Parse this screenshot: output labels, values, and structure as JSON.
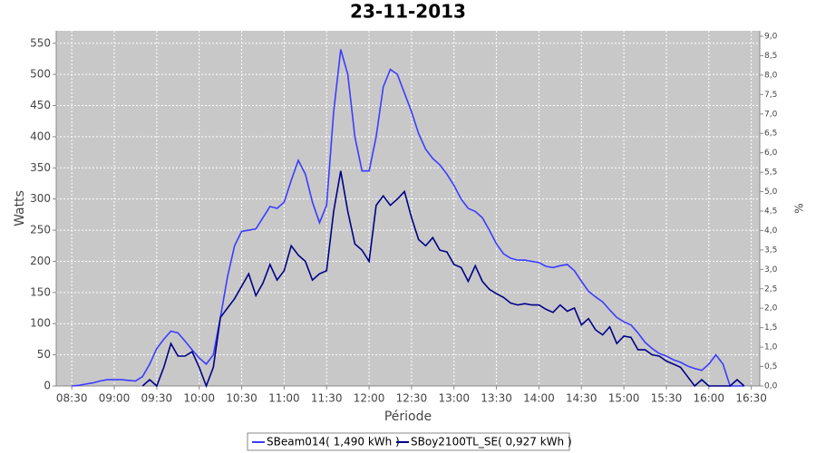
{
  "chart_data": {
    "type": "line",
    "title": "23-11-2013",
    "x_label": "Période",
    "y_label": "Watts",
    "y2_label": "%",
    "x": [
      "08:30",
      "08:35",
      "08:40",
      "08:45",
      "08:50",
      "08:55",
      "09:00",
      "09:05",
      "09:10",
      "09:15",
      "09:20",
      "09:25",
      "09:30",
      "09:35",
      "09:40",
      "09:45",
      "09:50",
      "09:55",
      "10:00",
      "10:05",
      "10:10",
      "10:15",
      "10:20",
      "10:25",
      "10:30",
      "10:35",
      "10:40",
      "10:45",
      "10:50",
      "10:55",
      "11:00",
      "11:05",
      "11:10",
      "11:15",
      "11:20",
      "11:25",
      "11:30",
      "11:35",
      "11:40",
      "11:45",
      "11:50",
      "11:55",
      "12:00",
      "12:05",
      "12:10",
      "12:15",
      "12:20",
      "12:25",
      "12:30",
      "12:35",
      "12:40",
      "12:45",
      "12:50",
      "12:55",
      "13:00",
      "13:05",
      "13:10",
      "13:15",
      "13:20",
      "13:25",
      "13:30",
      "13:35",
      "13:40",
      "13:45",
      "13:50",
      "13:55",
      "14:00",
      "14:05",
      "14:10",
      "14:15",
      "14:20",
      "14:25",
      "14:30",
      "14:35",
      "14:40",
      "14:45",
      "14:50",
      "14:55",
      "15:00",
      "15:05",
      "15:10",
      "15:15",
      "15:20",
      "15:25",
      "15:30",
      "15:35",
      "15:40",
      "15:45",
      "15:50",
      "15:55",
      "16:00",
      "16:05",
      "16:10",
      "16:15",
      "16:20",
      "16:25"
    ],
    "series": [
      {
        "name": "SBeam014( 1,490 kWh )",
        "color": "#3c3cff",
        "values": [
          0,
          1,
          3,
          5,
          8,
          10,
          10,
          10,
          9,
          8,
          15,
          35,
          60,
          75,
          88,
          85,
          72,
          58,
          45,
          35,
          50,
          110,
          175,
          225,
          248,
          250,
          252,
          270,
          288,
          285,
          295,
          330,
          362,
          340,
          295,
          262,
          290,
          440,
          540,
          500,
          400,
          345,
          345,
          400,
          480,
          508,
          500,
          470,
          440,
          405,
          380,
          365,
          355,
          340,
          322,
          300,
          285,
          280,
          270,
          250,
          228,
          212,
          205,
          202,
          202,
          200,
          198,
          192,
          190,
          193,
          195,
          185,
          168,
          152,
          143,
          135,
          122,
          110,
          103,
          98,
          85,
          70,
          60,
          52,
          48,
          42,
          38,
          32,
          28,
          25,
          35,
          50,
          35,
          0,
          0,
          0
        ]
      },
      {
        "name": "SBoy2100TL_SE( 0,927 kWh )",
        "color": "#000088",
        "values": [
          null,
          null,
          null,
          null,
          null,
          null,
          null,
          null,
          null,
          null,
          0,
          10,
          0,
          30,
          68,
          48,
          48,
          55,
          30,
          0,
          30,
          110,
          125,
          140,
          160,
          180,
          145,
          165,
          195,
          170,
          185,
          225,
          210,
          200,
          170,
          180,
          185,
          280,
          345,
          280,
          228,
          218,
          200,
          290,
          305,
          290,
          300,
          312,
          270,
          235,
          225,
          238,
          218,
          215,
          195,
          190,
          168,
          193,
          168,
          155,
          148,
          142,
          133,
          130,
          132,
          130,
          130,
          123,
          118,
          130,
          120,
          125,
          98,
          108,
          90,
          82,
          95,
          68,
          80,
          78,
          58,
          58,
          50,
          48,
          40,
          35,
          30,
          15,
          0,
          10,
          0,
          0,
          0,
          0,
          10,
          0
        ]
      }
    ],
    "xlim": [
      "08:19",
      "16:36"
    ],
    "xticks": [
      "08:30",
      "09:00",
      "09:30",
      "10:00",
      "10:30",
      "11:00",
      "11:30",
      "12:00",
      "12:30",
      "13:00",
      "13:30",
      "14:00",
      "14:30",
      "15:00",
      "15:30",
      "16:00",
      "16:30"
    ],
    "ylim": [
      0,
      570
    ],
    "yticks": [
      0,
      50,
      100,
      150,
      200,
      250,
      300,
      350,
      400,
      450,
      500,
      550
    ],
    "y2lim": [
      0,
      9.14
    ],
    "y2ticks": [
      {
        "value": 0,
        "label": "0,0"
      },
      {
        "value": 0.5,
        "label": "0,5"
      },
      {
        "value": 1,
        "label": "1,0"
      },
      {
        "value": 1.5,
        "label": "1,5"
      },
      {
        "value": 2,
        "label": "2,0"
      },
      {
        "value": 2.5,
        "label": "2,5"
      },
      {
        "value": 3,
        "label": "3,0"
      },
      {
        "value": 3.5,
        "label": "3,5"
      },
      {
        "value": 4,
        "label": "4,0"
      },
      {
        "value": 4.5,
        "label": "4,5"
      },
      {
        "value": 5,
        "label": "5,0"
      },
      {
        "value": 5.5,
        "label": "5,5"
      },
      {
        "value": 6,
        "label": "6,0"
      },
      {
        "value": 6.5,
        "label": "6,5"
      },
      {
        "value": 7,
        "label": "7,0"
      },
      {
        "value": 7.5,
        "label": "7,5"
      },
      {
        "value": 8,
        "label": "8,0"
      },
      {
        "value": 8.5,
        "label": "8,5"
      },
      {
        "value": 9,
        "label": "9,0"
      }
    ],
    "grid": true
  }
}
